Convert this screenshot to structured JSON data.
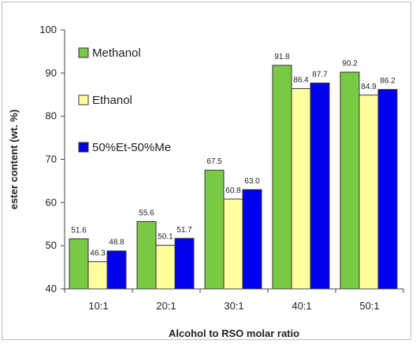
{
  "chart_data": {
    "type": "bar",
    "title": "",
    "xlabel": "Alcohol to RSO molar ratio",
    "ylabel": "ester content (wt. %)",
    "ylim": [
      40,
      100
    ],
    "yticks": [
      40,
      50,
      60,
      70,
      80,
      90,
      100
    ],
    "categories": [
      "10:1",
      "20:1",
      "30:1",
      "40:1",
      "50:1"
    ],
    "series": [
      {
        "name": "Methanol",
        "color": "#7ac943",
        "values": [
          51.6,
          55.6,
          67.5,
          91.8,
          90.2
        ],
        "labels": [
          "51.6",
          "55.6",
          "67.5",
          "91.8",
          "90.2"
        ]
      },
      {
        "name": "Ethanol",
        "color": "#ffff9e",
        "values": [
          46.3,
          50.1,
          60.8,
          86.4,
          84.9
        ],
        "labels": [
          "46.3",
          "50.1",
          "60.8",
          "86.4",
          "84.9"
        ]
      },
      {
        "name": "50%Et-50%Me",
        "color": "#0000ee",
        "values": [
          48.8,
          51.7,
          63.0,
          87.7,
          86.2
        ],
        "labels": [
          "48.8",
          "51.7",
          "63.0",
          "87.7",
          "86.2"
        ]
      }
    ],
    "legend": "inside-top-left",
    "grid": false
  }
}
